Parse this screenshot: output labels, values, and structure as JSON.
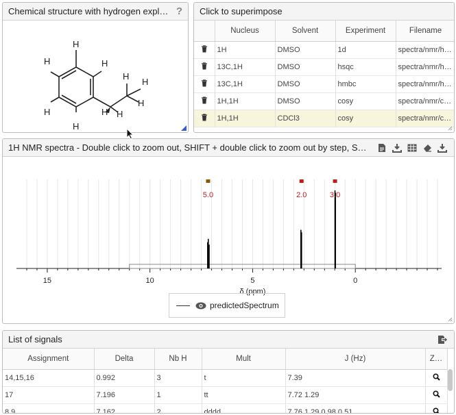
{
  "structure_panel": {
    "title": "Chemical structure with hydrogen expl…",
    "help_label": "?"
  },
  "superimpose_panel": {
    "title": "Click to superimpose",
    "columns": [
      "Nucleus",
      "Solvent",
      "Experiment",
      "Filename"
    ],
    "rows": [
      {
        "nucleus": "1H",
        "solvent": "DMSO",
        "experiment": "1d",
        "filename": "spectra/nmr/h…"
      },
      {
        "nucleus": "13C,1H",
        "solvent": "DMSO",
        "experiment": "hsqc",
        "filename": "spectra/nmr/h…"
      },
      {
        "nucleus": "13C,1H",
        "solvent": "DMSO",
        "experiment": "hmbc",
        "filename": "spectra/nmr/h…"
      },
      {
        "nucleus": "1H,1H",
        "solvent": "DMSO",
        "experiment": "cosy",
        "filename": "spectra/nmr/c…"
      },
      {
        "nucleus": "1H,1H",
        "solvent": "CDCl3",
        "experiment": "cosy",
        "filename": "spectra/nmr/c…"
      }
    ]
  },
  "spectrum_panel": {
    "title": "1H NMR spectra - Double click to zoom out, SHIFT + double click to zoom out by step, S…",
    "legend_label": "predictedSpectrum"
  },
  "chart_data": {
    "type": "line",
    "xlabel": "δ (ppm)",
    "x_ticks": [
      15,
      10,
      5,
      0
    ],
    "x_tick_labels": [
      "15",
      "10",
      "5",
      "0"
    ],
    "xlim": [
      16.5,
      -4.2
    ],
    "series": [
      {
        "name": "predictedSpectrum",
        "peaks": [
          {
            "ppm": 7.19,
            "height": 0.32
          },
          {
            "ppm": 7.16,
            "height": 0.36
          },
          {
            "ppm": 7.12,
            "height": 0.29
          },
          {
            "ppm": 2.65,
            "height": 0.47
          },
          {
            "ppm": 2.62,
            "height": 0.44
          },
          {
            "ppm": 0.99,
            "height": 0.95
          },
          {
            "ppm": 0.97,
            "height": 0.92
          }
        ]
      }
    ],
    "integrals": [
      {
        "ppm": 7.17,
        "label": "5.0"
      },
      {
        "ppm": 2.62,
        "label": "2.0"
      },
      {
        "ppm": 0.99,
        "label": "3.0"
      }
    ],
    "integral_color": "#c21b1b",
    "range_marker_colors": [
      "#8a5a00",
      "#c21b1b",
      "#c21b1b"
    ]
  },
  "signals_panel": {
    "title": "List of signals",
    "columns": [
      "Assignment",
      "Delta",
      "Nb H",
      "Mult",
      "J (Hz)",
      "Z…"
    ],
    "rows": [
      {
        "assignment": "14,15,16",
        "delta": "0.992",
        "nbh": "3",
        "mult": "t",
        "j": "7.39"
      },
      {
        "assignment": "17",
        "delta": "7.196",
        "nbh": "1",
        "mult": "tt",
        "j": "7.72 1.29"
      },
      {
        "assignment": "8,9",
        "delta": "7.162",
        "nbh": "2",
        "mult": "dddd",
        "j": "7.76 1.29 0.98 0.51"
      }
    ]
  },
  "molecule_labels": {
    "h": "H"
  }
}
